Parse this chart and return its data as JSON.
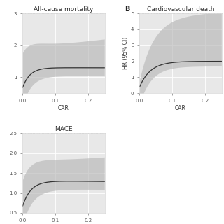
{
  "panel_A": {
    "title": "All-cause mortality",
    "xlabel": "CAR",
    "ylabel": "",
    "xlim": [
      0.0,
      0.25
    ],
    "ylim": [
      0.5,
      3.0
    ],
    "yticks": [
      1.0,
      2.0,
      3.0
    ],
    "ytick_labels": [
      "1",
      "2",
      "3"
    ],
    "xticks": [
      0.0,
      0.1,
      0.2
    ],
    "xtick_labels": [
      "0.0",
      "0.1",
      "0.2"
    ],
    "bg_color": "#e8e8e8"
  },
  "panel_B": {
    "title": "Cardiovascular death",
    "label": "B",
    "xlabel": "CAR",
    "ylabel": "HR (95% CI)",
    "xlim": [
      0.0,
      0.25
    ],
    "ylim": [
      0.0,
      5.0
    ],
    "yticks": [
      0.0,
      1.0,
      2.0,
      3.0,
      4.0,
      5.0
    ],
    "ytick_labels": [
      "0",
      "1",
      "2",
      "3",
      "4",
      "5"
    ],
    "xticks": [
      0.0,
      0.1,
      0.2
    ],
    "xtick_labels": [
      "0.0",
      "0.1",
      "0.2"
    ],
    "bg_color": "#e8e8e8"
  },
  "panel_C": {
    "title": "MACE",
    "xlabel": "CAR",
    "ylabel": "",
    "xlim": [
      0.0,
      0.25
    ],
    "ylim": [
      0.5,
      2.5
    ],
    "yticks": [
      0.5,
      1.0,
      1.5,
      2.0,
      2.5
    ],
    "ytick_labels": [
      "0.5",
      "1.0",
      "1.5",
      "2.0",
      "2.5"
    ],
    "xticks": [
      0.0,
      0.1,
      0.2
    ],
    "xtick_labels": [
      "0.0",
      "0.1",
      "0.2"
    ],
    "bg_color": "#e8e8e8"
  },
  "line_color": "#333333",
  "ci_color": "#b8b8b8",
  "grid_color": "#ffffff",
  "title_fontsize": 6.5,
  "label_fontsize": 5.5,
  "tick_fontsize": 5
}
